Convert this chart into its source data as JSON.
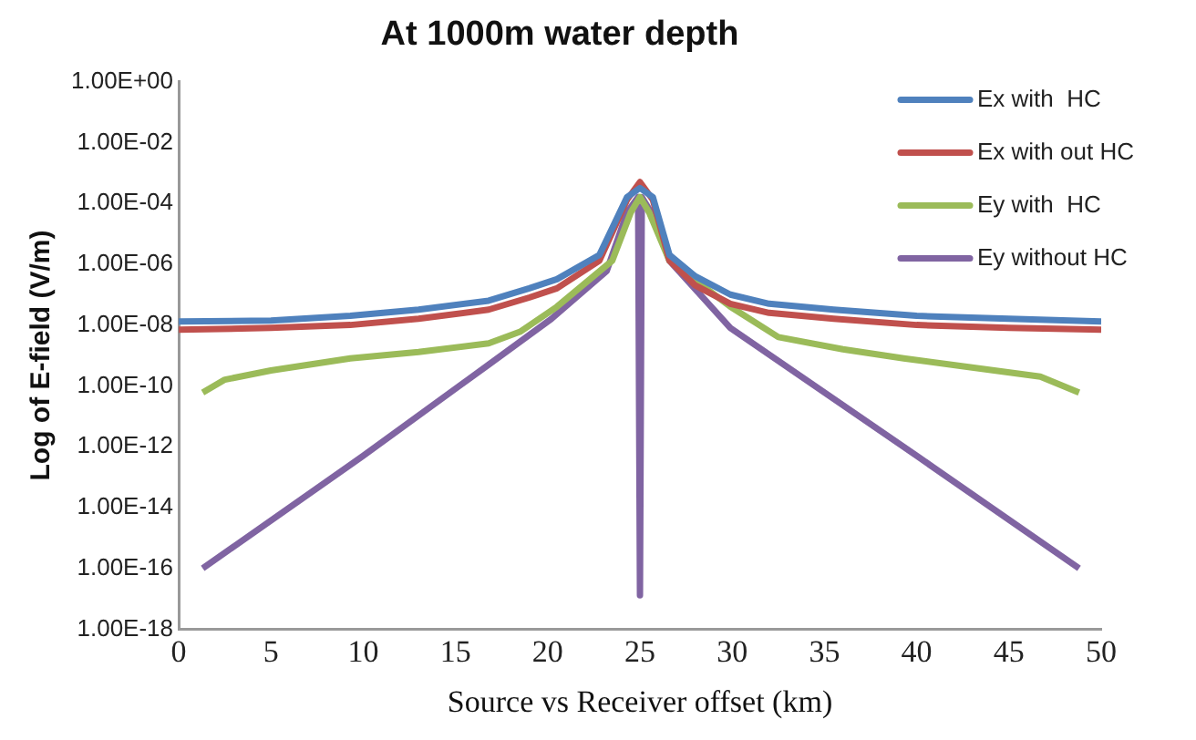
{
  "chart_data": {
    "type": "line",
    "title": "At 1000m water depth",
    "xlabel": "Source vs Receiver offset (km)",
    "ylabel": "Log of E-field (V/m)",
    "log": true,
    "grid": false,
    "legend": "top right",
    "marker": "none",
    "line_style": "solid",
    "xlim": [
      0,
      50
    ],
    "xticks": [
      0,
      5,
      10,
      15,
      20,
      25,
      30,
      35,
      40,
      45,
      50
    ],
    "ylim": [
      1e-18,
      1
    ],
    "yticks": [
      {
        "value": 1,
        "label": "1.00E+00"
      },
      {
        "value": 0.01,
        "label": "1.00E-02"
      },
      {
        "value": 0.0001,
        "label": "1.00E-04"
      },
      {
        "value": 1e-06,
        "label": "1.00E-06"
      },
      {
        "value": 1e-08,
        "label": "1.00E-08"
      },
      {
        "value": 1e-10,
        "label": "1.00E-10"
      },
      {
        "value": 1e-12,
        "label": "1.00E-12"
      },
      {
        "value": 1e-14,
        "label": "1.00E-14"
      },
      {
        "value": 1e-16,
        "label": "1.00E-16"
      },
      {
        "value": 1e-18,
        "label": "1.00E-18"
      }
    ],
    "series": [
      {
        "name": "Ex with  HC",
        "color": "#4f81bd",
        "x": [
          0,
          5,
          9.3,
          13,
          16.8,
          19,
          20.5,
          22.8,
          24.3,
          25,
          25.7,
          26.6,
          28,
          29.9,
          32,
          35.5,
          40,
          45,
          50
        ],
        "values": [
          1.3e-08,
          1.4e-08,
          2e-08,
          3.2e-08,
          6.3e-08,
          1.6e-07,
          3.2e-07,
          2e-06,
          0.00016,
          0.00032,
          0.00016,
          2e-06,
          4e-07,
          1e-07,
          5e-08,
          3.2e-08,
          2e-08,
          1.6e-08,
          1.3e-08
        ]
      },
      {
        "name": "Ex with out HC",
        "color": "#c0504d",
        "x": [
          0,
          5,
          9.3,
          13,
          16.8,
          19,
          20.5,
          22.8,
          24.3,
          25,
          25.7,
          26.6,
          28,
          29.9,
          32,
          35.5,
          40,
          45,
          50
        ],
        "values": [
          7e-09,
          8e-09,
          1e-08,
          1.6e-08,
          3.2e-08,
          8e-08,
          1.6e-07,
          1.3e-06,
          0.00013,
          0.0005,
          0.00013,
          1.3e-06,
          2e-07,
          5e-08,
          2.5e-08,
          1.6e-08,
          1e-08,
          8e-09,
          7e-09
        ]
      },
      {
        "name": "Ey with  HC",
        "color": "#9bbb59",
        "x": [
          1.3,
          2.5,
          5,
          9.3,
          13,
          16.8,
          18.5,
          20.5,
          23.5,
          24.5,
          25,
          25.5,
          26.6,
          29.9,
          32.5,
          36,
          39.3,
          43,
          46.7,
          48.8
        ],
        "values": [
          6e-11,
          1.6e-10,
          3.2e-10,
          8e-10,
          1.3e-09,
          2.5e-09,
          6e-09,
          4e-08,
          1.3e-06,
          5e-05,
          0.00016,
          5e-05,
          1.3e-06,
          4e-08,
          4e-09,
          1.6e-09,
          8e-10,
          4e-10,
          2e-10,
          6e-11
        ]
      },
      {
        "name": "Ey without HC",
        "color": "#8064a2",
        "x": [
          1.3,
          10,
          16.8,
          20.2,
          23.2,
          24.3,
          24.9,
          25,
          25.1,
          25.8,
          26.6,
          29.9,
          40,
          48.8
        ],
        "values": [
          1e-16,
          5e-13,
          5e-10,
          1.6e-08,
          6e-07,
          5e-05,
          0.00016,
          1.3e-17,
          0.00016,
          3.2e-05,
          1.3e-06,
          8e-09,
          5e-13,
          1e-16
        ]
      }
    ]
  }
}
